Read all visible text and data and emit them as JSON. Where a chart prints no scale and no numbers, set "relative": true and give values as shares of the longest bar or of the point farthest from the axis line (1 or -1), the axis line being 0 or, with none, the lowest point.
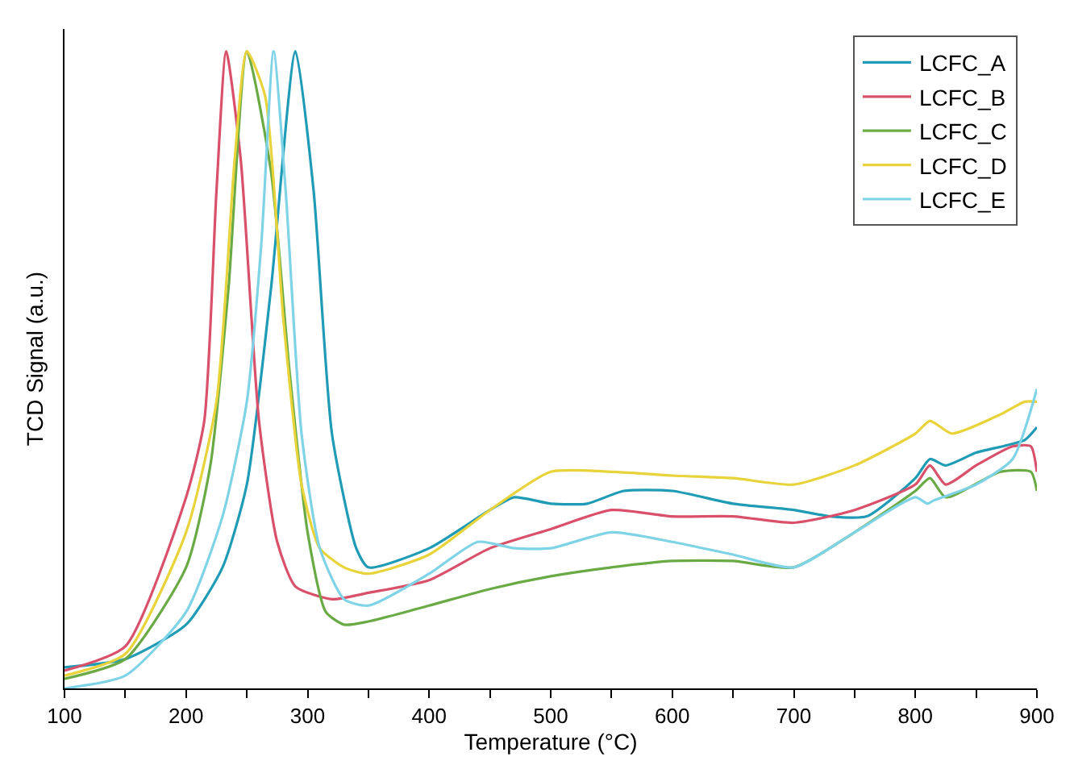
{
  "chart_data": {
    "type": "line",
    "relative": true,
    "xlabel": "Temperature (°C)",
    "ylabel": "TCD Signal (a.u.)",
    "xlim": [
      100,
      900
    ],
    "xticks": [
      100,
      {
        "value": 150,
        "label": null
      },
      200,
      {
        "value": 250,
        "label": null
      },
      300,
      {
        "value": 350,
        "label": null
      },
      400,
      {
        "value": 450,
        "label": null
      },
      500,
      {
        "value": 550,
        "label": null
      },
      600,
      {
        "value": 650,
        "label": null
      },
      700,
      {
        "value": 750,
        "label": null
      },
      800,
      {
        "value": 850,
        "label": null
      },
      900
    ],
    "legend": "top right",
    "marker": "none",
    "line_style": "solid",
    "series": [
      {
        "name": "LCFC_A",
        "color": "#1f9bb5",
        "x": [
          100,
          150,
          200,
          230,
          250,
          270,
          290,
          305,
          320,
          340,
          350,
          400,
          450,
          470,
          500,
          530,
          560,
          600,
          650,
          700,
          730,
          760,
          800,
          812,
          825,
          850,
          890,
          900
        ],
        "values": [
          0.033,
          0.046,
          0.1,
          0.19,
          0.32,
          0.63,
          1.0,
          0.78,
          0.4,
          0.22,
          0.19,
          0.22,
          0.28,
          0.3,
          0.29,
          0.29,
          0.31,
          0.31,
          0.29,
          0.28,
          0.27,
          0.27,
          0.33,
          0.36,
          0.35,
          0.37,
          0.39,
          0.41
        ]
      },
      {
        "name": "LCFC_B",
        "color": "#d9506a",
        "x": [
          100,
          150,
          200,
          215,
          225,
          233,
          245,
          260,
          275,
          290,
          320,
          350,
          400,
          450,
          500,
          550,
          600,
          650,
          700,
          750,
          800,
          812,
          825,
          850,
          880,
          895,
          900
        ],
        "values": [
          0.028,
          0.066,
          0.3,
          0.42,
          0.78,
          1.0,
          0.83,
          0.42,
          0.23,
          0.16,
          0.14,
          0.15,
          0.17,
          0.22,
          0.25,
          0.28,
          0.27,
          0.27,
          0.26,
          0.28,
          0.32,
          0.35,
          0.32,
          0.35,
          0.38,
          0.38,
          0.34
        ]
      },
      {
        "name": "LCFC_C",
        "color": "#6aaa45",
        "x": [
          100,
          150,
          200,
          220,
          235,
          250,
          270,
          285,
          300,
          315,
          330,
          350,
          400,
          450,
          500,
          550,
          600,
          650,
          700,
          750,
          800,
          812,
          825,
          870,
          895,
          900
        ],
        "values": [
          0.015,
          0.046,
          0.19,
          0.35,
          0.63,
          1.0,
          0.81,
          0.5,
          0.245,
          0.12,
          0.1,
          0.105,
          0.13,
          0.156,
          0.176,
          0.19,
          0.2,
          0.2,
          0.19,
          0.245,
          0.31,
          0.33,
          0.3,
          0.34,
          0.34,
          0.31
        ]
      },
      {
        "name": "LCFC_D",
        "color": "#e8d33a",
        "x": [
          100,
          150,
          200,
          225,
          240,
          250,
          265,
          280,
          295,
          310,
          330,
          350,
          400,
          450,
          500,
          550,
          600,
          650,
          700,
          750,
          800,
          812,
          830,
          870,
          890,
          900
        ],
        "values": [
          0.02,
          0.054,
          0.245,
          0.45,
          0.83,
          1.0,
          0.93,
          0.58,
          0.32,
          0.22,
          0.19,
          0.18,
          0.21,
          0.28,
          0.34,
          0.34,
          0.334,
          0.33,
          0.32,
          0.35,
          0.4,
          0.42,
          0.4,
          0.43,
          0.45,
          0.45
        ]
      },
      {
        "name": "LCFC_E",
        "color": "#7fd3e6",
        "x": [
          100,
          150,
          200,
          230,
          250,
          262,
          272,
          282,
          295,
          310,
          330,
          350,
          400,
          440,
          470,
          500,
          550,
          600,
          650,
          700,
          750,
          800,
          810,
          815,
          850,
          880,
          900
        ],
        "values": [
          0.0,
          0.02,
          0.12,
          0.27,
          0.45,
          0.7,
          1.0,
          0.78,
          0.4,
          0.22,
          0.14,
          0.13,
          0.18,
          0.23,
          0.22,
          0.22,
          0.245,
          0.23,
          0.21,
          0.19,
          0.245,
          0.3,
          0.29,
          0.295,
          0.32,
          0.36,
          0.47
        ]
      }
    ]
  }
}
